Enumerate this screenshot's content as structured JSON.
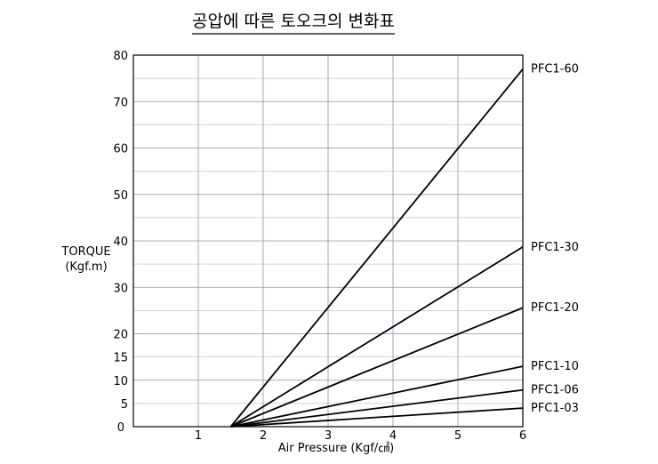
{
  "chart_data": {
    "type": "line",
    "title": "공압에 따른 토오크의 변화표",
    "ylabel_line1": "TORQUE",
    "ylabel_line2": "(Kgf.m)",
    "xlabel": "Air Pressure (Kgf/㎠)",
    "xlim": [
      0,
      6
    ],
    "ylim": [
      0,
      80
    ],
    "grid": true,
    "x_ticks": [
      {
        "value": 0,
        "label": "0"
      },
      {
        "value": 1,
        "label": "1"
      },
      {
        "value": 2,
        "label": "2"
      },
      {
        "value": 3,
        "label": "3"
      },
      {
        "value": 4,
        "label": "4"
      },
      {
        "value": 5,
        "label": "5"
      },
      {
        "value": 6,
        "label": "6"
      }
    ],
    "y_ticks": [
      {
        "value": 5,
        "label": "5"
      },
      {
        "value": 10,
        "label": "10"
      },
      {
        "value": 15,
        "label": "15"
      },
      {
        "value": 20,
        "label": "20"
      },
      {
        "value": 30,
        "label": "30"
      },
      {
        "value": 40,
        "label": "40"
      },
      {
        "value": 50,
        "label": "50"
      },
      {
        "value": 60,
        "label": "60"
      },
      {
        "value": 70,
        "label": "70"
      },
      {
        "value": 80,
        "label": "80"
      }
    ],
    "series": [
      {
        "name": "PFC1-60",
        "x": [
          1.5,
          6
        ],
        "y": [
          0,
          77
        ]
      },
      {
        "name": "PFC1-30",
        "x": [
          1.5,
          6
        ],
        "y": [
          0,
          38.7
        ]
      },
      {
        "name": "PFC1-20",
        "x": [
          1.5,
          6
        ],
        "y": [
          0,
          25.6
        ]
      },
      {
        "name": "PFC1-10",
        "x": [
          1.5,
          6
        ],
        "y": [
          0,
          13
        ]
      },
      {
        "name": "PFC1-06",
        "x": [
          1.5,
          6
        ],
        "y": [
          0,
          7.9
        ]
      },
      {
        "name": "PFC1-03",
        "x": [
          1.5,
          6
        ],
        "y": [
          0,
          4
        ]
      }
    ],
    "colors": {
      "line": "#000000",
      "grid": "#8f8fb3",
      "grid_minor": "#c4c4dc"
    }
  }
}
